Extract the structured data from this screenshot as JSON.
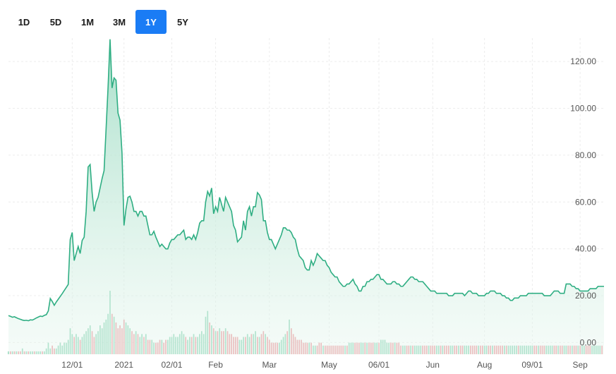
{
  "range_selector": {
    "buttons": [
      {
        "label": "1D"
      },
      {
        "label": "5D"
      },
      {
        "label": "1M"
      },
      {
        "label": "3M"
      },
      {
        "label": "1Y",
        "active": true
      },
      {
        "label": "5Y"
      }
    ]
  },
  "colors": {
    "line": "#2fae83",
    "area_top": "#9fdcc4",
    "vol_up": "#8fd6b8",
    "vol_down": "#ee9aa0",
    "active_button": "#1a7cf5"
  },
  "chart_data": {
    "type": "area",
    "title": "",
    "xlabel": "",
    "ylabel": "",
    "ylim": [
      -5,
      130
    ],
    "y_ticks": [
      "0.00",
      "20.00",
      "40.00",
      "60.00",
      "80.00",
      "100.00",
      "120.00"
    ],
    "y_tick_values": [
      0,
      20,
      40,
      60,
      80,
      100,
      120
    ],
    "x_tick_labels": [
      "12/01",
      "2021",
      "02/01",
      "Feb",
      "Mar",
      "May",
      "06/01",
      "Jun",
      "Aug",
      "09/01",
      "Sep"
    ],
    "x_tick_index": [
      32,
      58,
      82,
      104,
      131,
      161,
      186,
      213,
      239,
      263,
      287
    ],
    "price": [
      11.5,
      11.2,
      10.8,
      11,
      10.6,
      10.2,
      9.9,
      9.6,
      9.4,
      9.5,
      9.3,
      9.7,
      9.6,
      10,
      10.5,
      10.9,
      11.3,
      11.1,
      11.6,
      11.9,
      13.5,
      18.8,
      17.5,
      15.9,
      17.3,
      18.5,
      19.7,
      20.9,
      22.2,
      23.5,
      24.8,
      44,
      47,
      35,
      38,
      41,
      38,
      43.6,
      45,
      56,
      75,
      76,
      64,
      56,
      60,
      62,
      66,
      70,
      73.4,
      91,
      109,
      129.5,
      108.7,
      113,
      112,
      98,
      95,
      81,
      50,
      57,
      62,
      62.5,
      60,
      56,
      56,
      54,
      56,
      56,
      54,
      54,
      50,
      46,
      46,
      47.5,
      45,
      43,
      41,
      42,
      41,
      40,
      40,
      42.5,
      44,
      44,
      45,
      46,
      46,
      47,
      48,
      44,
      45,
      45,
      44,
      46,
      44,
      47,
      51,
      52,
      52,
      60,
      64.5,
      62.6,
      66,
      55,
      58,
      56,
      62,
      59,
      56,
      62,
      60,
      58,
      56,
      50,
      48,
      43,
      44,
      45,
      52,
      48,
      56,
      58,
      54,
      58,
      58,
      64,
      63,
      61,
      52,
      52,
      47,
      44,
      44,
      42,
      40,
      42,
      44,
      46,
      49,
      49,
      48,
      48,
      47,
      45,
      44,
      40,
      37,
      36,
      35,
      32,
      31,
      31,
      35,
      33,
      35,
      38,
      37,
      36,
      35,
      35,
      33,
      32,
      30,
      29,
      28,
      28,
      26,
      25,
      24,
      24,
      25,
      25,
      26,
      27,
      25,
      24,
      22,
      22,
      24,
      24,
      26,
      26,
      27,
      27,
      28,
      29,
      29,
      27,
      27,
      26,
      25,
      25,
      25,
      26,
      26,
      25,
      25,
      24,
      24,
      25,
      26,
      27,
      28,
      28,
      27,
      27,
      26,
      26,
      26,
      25,
      24,
      23,
      22,
      22,
      22,
      21,
      21,
      21,
      21,
      21,
      21,
      20,
      20,
      20,
      21,
      21,
      21,
      21,
      21,
      20,
      21,
      22,
      22,
      21,
      21,
      21,
      20,
      20,
      20,
      20,
      21,
      21,
      22,
      22,
      22,
      21,
      21,
      21,
      20,
      20,
      19,
      19,
      18,
      18,
      19,
      19,
      19,
      20,
      20,
      20,
      20,
      21,
      21,
      21,
      21,
      21,
      21,
      21,
      21,
      20,
      20,
      20,
      20,
      21,
      22,
      22,
      22,
      21,
      21,
      21,
      25,
      25,
      25,
      24,
      24,
      23,
      23,
      22,
      22,
      22,
      22,
      22,
      23,
      23,
      23,
      23,
      24,
      24,
      24,
      24
    ],
    "volume": [
      1,
      1,
      1,
      1,
      1,
      1,
      1,
      2,
      1,
      1,
      1,
      1,
      1,
      1,
      1,
      1,
      1,
      1,
      1,
      2,
      4,
      2,
      3,
      2,
      2,
      3,
      4,
      3,
      4,
      4,
      5,
      9,
      7,
      6,
      7,
      6,
      5,
      6,
      7,
      8,
      9,
      10,
      8,
      6,
      7,
      8,
      10,
      9,
      11,
      12,
      14,
      22,
      14,
      13,
      11,
      9,
      10,
      9,
      12,
      11,
      10,
      9,
      8,
      7,
      8,
      7,
      6,
      7,
      6,
      7,
      5,
      5,
      5,
      4,
      4,
      4,
      5,
      5,
      4,
      5,
      5,
      6,
      6,
      7,
      6,
      6,
      7,
      8,
      7,
      6,
      5,
      6,
      6,
      7,
      6,
      6,
      7,
      8,
      7,
      13,
      15,
      11,
      10,
      9,
      8,
      8,
      9,
      8,
      8,
      9,
      8,
      7,
      7,
      6,
      6,
      6,
      5,
      5,
      6,
      6,
      7,
      6,
      7,
      7,
      8,
      6,
      6,
      7,
      8,
      7,
      6,
      5,
      4,
      4,
      4,
      4,
      4,
      5,
      6,
      7,
      8,
      12,
      9,
      7,
      6,
      5,
      5,
      5,
      4,
      4,
      4,
      4,
      4,
      3,
      3,
      3,
      4,
      4,
      3,
      3,
      3,
      3,
      3,
      3,
      3,
      3,
      3,
      3,
      3,
      3,
      3,
      4,
      4,
      4,
      4,
      4,
      4,
      4,
      4,
      4,
      4,
      4,
      4,
      4,
      4,
      4,
      4,
      5,
      5,
      5,
      4,
      4,
      4,
      4,
      4,
      4,
      4,
      3,
      3,
      3,
      3,
      3,
      3,
      3,
      3,
      3,
      3,
      3,
      3,
      3,
      3,
      3,
      3,
      3,
      3,
      3,
      3,
      3,
      3,
      3,
      3,
      3,
      3,
      3,
      3,
      3,
      3,
      3,
      3,
      3,
      3,
      3,
      3,
      3,
      3,
      3,
      3,
      3,
      3,
      3,
      3,
      3,
      3,
      3,
      3,
      3,
      3,
      3,
      3,
      3,
      3,
      3,
      3,
      3,
      3,
      3,
      3,
      3,
      3,
      3,
      3,
      3,
      3,
      3,
      3,
      3,
      3,
      3,
      3,
      3,
      3,
      3,
      3,
      3,
      3,
      3,
      3,
      3,
      3,
      3,
      3,
      3,
      3,
      3,
      3,
      3,
      3,
      3,
      3,
      3,
      3,
      3,
      3,
      3,
      3,
      3,
      3,
      3,
      3
    ],
    "volume_up": [
      1,
      0,
      1,
      0,
      1,
      0,
      0,
      1,
      0,
      1,
      0,
      1,
      1,
      0,
      1,
      1,
      1,
      0,
      1,
      1,
      1,
      1,
      0,
      0,
      1,
      1,
      1,
      1,
      1,
      1,
      1,
      1,
      1,
      0,
      1,
      1,
      0,
      1,
      1,
      1,
      1,
      1,
      0,
      0,
      1,
      1,
      1,
      1,
      1,
      1,
      1,
      1,
      0,
      1,
      0,
      0,
      0,
      0,
      0,
      1,
      1,
      1,
      0,
      0,
      1,
      0,
      1,
      1,
      0,
      1,
      0,
      0,
      1,
      1,
      0,
      0,
      0,
      1,
      0,
      0,
      1,
      1,
      1,
      1,
      1,
      1,
      1,
      1,
      1,
      0,
      1,
      1,
      0,
      1,
      0,
      1,
      1,
      1,
      1,
      1,
      1,
      0,
      1,
      0,
      1,
      0,
      1,
      0,
      0,
      1,
      0,
      0,
      0,
      0,
      0,
      0,
      1,
      1,
      1,
      0,
      1,
      1,
      0,
      1,
      1,
      0,
      1,
      0,
      0,
      1,
      0,
      0,
      0,
      0,
      0,
      0,
      1,
      1,
      1,
      1,
      0,
      1,
      0,
      0,
      0,
      0,
      0,
      0,
      0,
      0,
      0,
      1,
      0,
      1,
      1,
      0,
      0,
      0,
      1,
      0,
      0,
      0,
      0,
      0,
      0,
      0,
      0,
      0,
      0,
      1,
      0,
      1,
      1,
      1,
      0,
      0,
      0,
      1,
      1,
      0,
      1,
      0,
      0,
      0,
      1,
      1,
      0,
      1,
      1,
      1,
      1,
      1,
      0,
      0,
      1,
      0,
      0,
      0,
      1,
      1,
      0,
      0,
      1,
      0,
      1,
      1,
      1,
      1,
      0,
      0,
      0,
      1,
      0,
      0,
      0,
      1,
      1,
      0,
      1,
      0,
      0,
      0,
      1,
      1,
      0,
      0,
      1,
      0,
      0,
      1,
      1,
      1,
      0,
      0,
      0,
      0,
      1,
      0,
      0,
      1,
      1,
      0,
      0,
      1,
      0,
      0,
      0,
      0,
      0,
      1,
      0,
      1,
      1,
      1,
      1,
      1,
      0,
      1,
      1,
      1,
      1,
      1,
      1,
      1,
      0,
      0,
      1,
      0,
      0,
      0,
      1,
      1,
      1,
      1,
      0,
      0,
      1,
      0,
      0,
      1,
      1,
      0,
      0,
      1,
      0,
      0,
      1,
      0,
      1,
      1,
      0,
      0,
      0,
      1,
      1,
      1,
      1,
      1,
      0,
      0,
      1,
      0,
      1,
      0,
      1,
      1,
      1,
      1
    ]
  }
}
